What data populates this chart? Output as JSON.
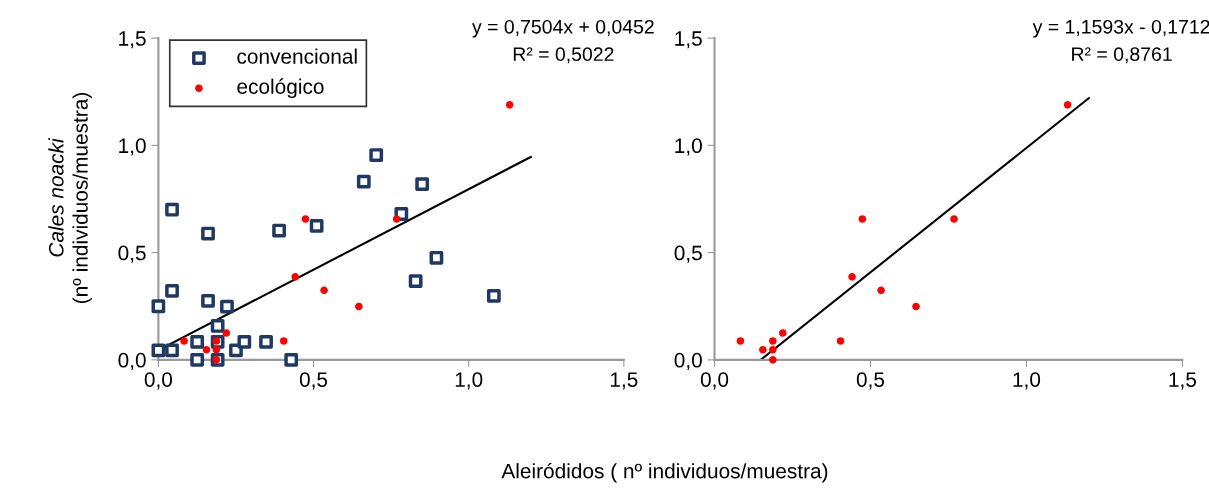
{
  "chart_data": [
    {
      "type": "scatter",
      "xlabel": "Aleiródidos ( nº individuos/muestra)",
      "ylabel": "Cales noacki\n(nº individuos/muestra)",
      "xlim": [
        0,
        1.5
      ],
      "ylim": [
        0,
        1.5
      ],
      "xticks": [
        {
          "value": 0,
          "label": "0,0"
        },
        {
          "value": 0.5,
          "label": "0,5"
        },
        {
          "value": 1.0,
          "label": "1,0"
        },
        {
          "value": 1.5,
          "label": "1,5"
        }
      ],
      "yticks": [
        {
          "value": 0,
          "label": "0,0"
        },
        {
          "value": 0.5,
          "label": "0,5"
        },
        {
          "value": 1.0,
          "label": "1,0"
        },
        {
          "value": 1.5,
          "label": "1,5"
        }
      ],
      "grid": false,
      "legend": "top left",
      "annotations": [
        "y = 0,7504x + 0,0452",
        "R² = 0,5022"
      ],
      "series": [
        {
          "name": "convencional",
          "color": "#1f3864",
          "marker": "square",
          "x": [
            0,
            0,
            0.044,
            0.044,
            0.044,
            0.125,
            0.125,
            0.16,
            0.16,
            0.191,
            0.191,
            0.191,
            0.221,
            0.25,
            0.277,
            0.347,
            0.389,
            0.428,
            0.51,
            0.662,
            0.702,
            0.783,
            0.829,
            0.85,
            0.896,
            1.081
          ],
          "values": [
            0.25,
            0.044,
            0.044,
            0.322,
            0.7,
            0.084,
            0,
            0.275,
            0.589,
            0.158,
            0.084,
            0,
            0.248,
            0.044,
            0.084,
            0.084,
            0.603,
            0,
            0.625,
            0.831,
            0.955,
            0.68,
            0.367,
            0.819,
            0.476,
            0.298
          ]
        },
        {
          "name": "ecológico",
          "color": "#ff0000",
          "marker": "circle",
          "x": [
            0.083,
            0.155,
            0.187,
            0.187,
            0.187,
            0.219,
            0.404,
            0.441,
            0.474,
            0.534,
            0.646,
            0.768,
            1.132
          ],
          "values": [
            0.088,
            0.047,
            0.088,
            0.047,
            0,
            0.125,
            0.088,
            0.387,
            0.657,
            0.324,
            0.249,
            0.657,
            1.189
          ]
        },
        {
          "type": "line",
          "color": "#000000",
          "x": [
            0,
            1.2
          ],
          "values": [
            0.045,
            0.946
          ]
        }
      ]
    },
    {
      "type": "scatter",
      "xlim": [
        0,
        1.5
      ],
      "ylim": [
        0,
        1.5
      ],
      "xticks": [
        {
          "value": 0,
          "label": "0,0"
        },
        {
          "value": 0.5,
          "label": "0,5"
        },
        {
          "value": 1.0,
          "label": "1,0"
        },
        {
          "value": 1.5,
          "label": "1,5"
        }
      ],
      "yticks": [
        {
          "value": 0,
          "label": "0,0"
        },
        {
          "value": 0.5,
          "label": "0,5"
        },
        {
          "value": 1.0,
          "label": "1,0"
        },
        {
          "value": 1.5,
          "label": "1,5"
        }
      ],
      "grid": false,
      "annotations": [
        "y = 1,1593x - 0,1712",
        "R² = 0,8761"
      ],
      "series": [
        {
          "color": "#ff0000",
          "marker": "circle",
          "x": [
            0.083,
            0.155,
            0.187,
            0.187,
            0.187,
            0.219,
            0.404,
            0.441,
            0.474,
            0.534,
            0.646,
            0.768,
            1.132
          ],
          "values": [
            0.088,
            0.047,
            0.088,
            0.047,
            0,
            0.125,
            0.088,
            0.387,
            0.657,
            0.324,
            0.249,
            0.657,
            1.189
          ]
        },
        {
          "type": "line",
          "color": "#000000",
          "x": [
            0.148,
            1.2
          ],
          "values": [
            0,
            1.22
          ]
        }
      ]
    }
  ]
}
